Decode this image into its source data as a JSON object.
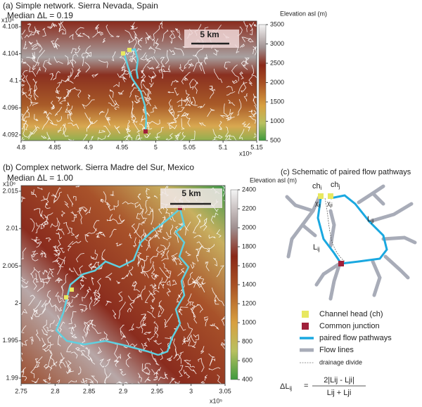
{
  "panel_a": {
    "title": "(a) Simple network. Sierra Nevada, Spain",
    "median": "Median ΔL = 0.19",
    "xticks": [
      4.8,
      4.85,
      4.9,
      4.95,
      5,
      5.05,
      5.1,
      5.15
    ],
    "x_exponent": "x10⁵",
    "yticks": [
      4.092,
      4.096,
      4.1,
      4.104,
      4.108
    ],
    "y_exponent": "x10⁶",
    "colorbar_label": "Elevation asl (m)",
    "colorbar_ticks": [
      500,
      1000,
      1500,
      2000,
      2500,
      3000,
      3500
    ],
    "scale_bar": "5 km"
  },
  "panel_b": {
    "title": "(b) Complex network. Sierra Madre del Sur, Mexico",
    "median": "Median ΔL = 1.00",
    "xticks": [
      2.75,
      2.8,
      2.85,
      2.9,
      2.95,
      3,
      3.05
    ],
    "x_exponent": "x10⁵",
    "yticks": [
      1.99,
      1.995,
      2,
      2.005,
      2.01,
      2.015
    ],
    "y_exponent": "x10⁶",
    "colorbar_label": "Elevation asl (m)",
    "colorbar_ticks": [
      400,
      600,
      800,
      1000,
      1200,
      1400,
      1600,
      1800,
      2000,
      2200,
      2400
    ],
    "scale_bar": "5 km"
  },
  "panel_c": {
    "title": "(c) Schematic of paired flow pathways",
    "labels": {
      "ch_i": "ch",
      "ch_i_sub": "i",
      "ch_j": "ch",
      "ch_j_sub": "j",
      "chi_ij": "χ",
      "chi_ij_sub": "ij",
      "chi_ji": "χ",
      "chi_ji_sub": "ji",
      "L_ij": "L",
      "L_ij_sub": "ij",
      "L_ji": "L",
      "L_ji_sub": "ji"
    },
    "legend": [
      "Channel head (ch)",
      "Common junction",
      "paired flow pathways",
      "Flow lines",
      "drainage divide"
    ],
    "formula": {
      "lhs": "ΔL",
      "lhs_sub": "ij",
      "eq": "=",
      "numerator": "2|Lij - Lji|",
      "denominator": "Lij + Lji"
    }
  }
}
